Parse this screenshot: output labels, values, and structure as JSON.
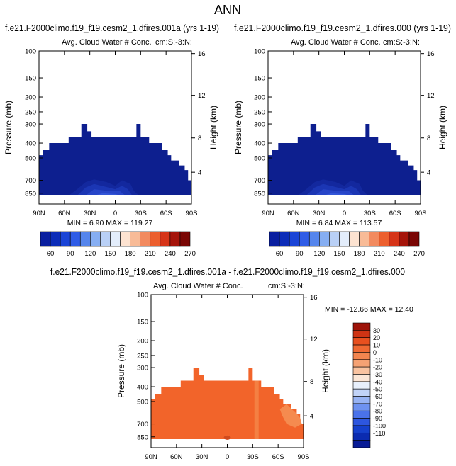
{
  "page_title": "ANN",
  "colors": {
    "cold_scale": [
      "#0a1fa0",
      "#0c2cb8",
      "#1a44d6",
      "#2f5ce6",
      "#5585ec",
      "#86aef2",
      "#b9d0f6",
      "#e3edfb",
      "#fde3d1",
      "#f8bb97",
      "#f28a5f",
      "#ec5f2e",
      "#d63418",
      "#a5140a",
      "#7a0604"
    ],
    "diff_scale": [
      "#081b96",
      "#0b2bb0",
      "#1540cc",
      "#2d56df",
      "#4a72ea",
      "#6e92f0",
      "#97b3f4",
      "#c1d3f8",
      "#e8f0fc",
      "#fbe6d6",
      "#f9c3a0",
      "#f5a274",
      "#f2854f",
      "#ef6933",
      "#e8501f",
      "#cf3414",
      "#9e1309"
    ],
    "cloud_fill": "#0d1f8f",
    "cloud_light": [
      "#13289e",
      "#1b36b4",
      "#2745c8",
      "#3356d8"
    ],
    "diff_fill": "#f2642a",
    "diff_light": "#f58b4f"
  },
  "panels": [
    {
      "case_title": "f.e21.F2000climo.f19_f19.cesm2_1.dfires.001a (yrs 1-19)",
      "subtitle": "Avg. Cloud Water # Conc.",
      "right_label": "cm:S:-3:N:",
      "ylabel": "Pressure (mb)",
      "ylabel_right": "Height (km)",
      "minmax": "MIN =  6.90   MAX = 119.27"
    },
    {
      "case_title": "f.e21.F2000climo.f19_f19.cesm2_1.dfires.000 (yrs 1-19)",
      "subtitle": "Avg. Cloud Water # Conc.",
      "right_label": "cm:S:-3:N:",
      "ylabel": "Pressure (mb)",
      "ylabel_right": "Height (km)",
      "minmax": "MIN =  6.84   MAX = 113.57"
    },
    {
      "case_title": "f.e21.F2000climo.f19_f19.cesm2_1.dfires.001a - f.e21.F2000climo.f19_f19.cesm2_1.dfires.000",
      "subtitle": "Avg. Cloud Water # Conc.",
      "right_label": "cm:S:-3:N:",
      "ylabel": "Pressure (mb)",
      "ylabel_right": "Height (km)",
      "minmax": "MIN = -12.66   MAX =  12.40"
    }
  ],
  "chart_data": [
    {
      "type": "heatmap",
      "title": "Avg. Cloud Water # Conc.",
      "xlabel": "",
      "ylabel": "Pressure (mb)",
      "y2label": "Height (km)",
      "x_ticks": [
        "90N",
        "60N",
        "30N",
        "0",
        "30S",
        "60S",
        "90S"
      ],
      "y_ticks": [
        "100",
        "150",
        "200",
        "250",
        "300",
        "400",
        "500",
        "700",
        "850"
      ],
      "y2_ticks": [
        "16",
        "12",
        "8",
        "4"
      ],
      "min": 6.9,
      "max": 119.27,
      "colorbar_labels": [
        "60",
        "90",
        "120",
        "150",
        "180",
        "210",
        "240",
        "270"
      ]
    },
    {
      "type": "heatmap",
      "title": "Avg. Cloud Water # Conc.",
      "xlabel": "",
      "ylabel": "Pressure (mb)",
      "y2label": "Height (km)",
      "x_ticks": [
        "90N",
        "60N",
        "30N",
        "0",
        "30S",
        "60S",
        "90S"
      ],
      "y_ticks": [
        "100",
        "150",
        "200",
        "250",
        "300",
        "400",
        "500",
        "700",
        "850"
      ],
      "y2_ticks": [
        "16",
        "12",
        "8",
        "4"
      ],
      "min": 6.84,
      "max": 113.57,
      "colorbar_labels": [
        "60",
        "90",
        "120",
        "150",
        "180",
        "210",
        "240",
        "270"
      ]
    },
    {
      "type": "heatmap",
      "title": "Avg. Cloud Water # Conc.",
      "xlabel": "",
      "ylabel": "Pressure (mb)",
      "y2label": "Height (km)",
      "x_ticks": [
        "90N",
        "60N",
        "30N",
        "0",
        "30S",
        "60S",
        "90S"
      ],
      "y_ticks": [
        "100",
        "150",
        "200",
        "250",
        "300",
        "400",
        "500",
        "700",
        "850"
      ],
      "y2_ticks": [
        "16",
        "12",
        "8",
        "4"
      ],
      "min": -12.66,
      "max": 12.4,
      "colorbar_labels": [
        "30",
        "20",
        "10",
        "0",
        "-10",
        "-20",
        "-30",
        "-40",
        "-50",
        "-60",
        "-70",
        "-80",
        "-90",
        "-100",
        "-110"
      ]
    }
  ]
}
